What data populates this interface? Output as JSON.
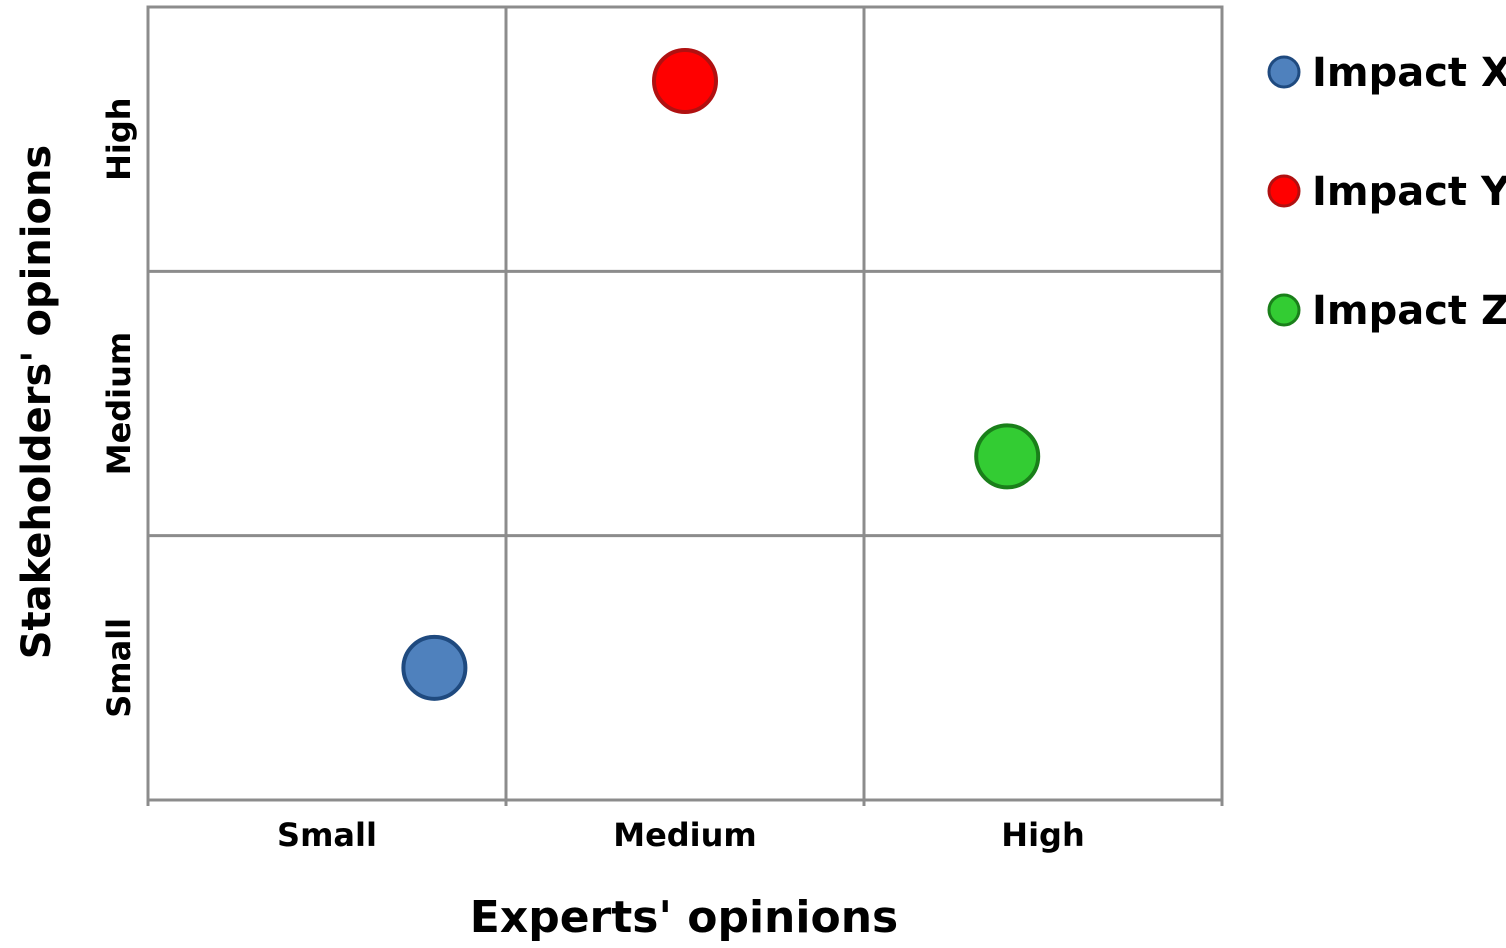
{
  "chart_data": {
    "type": "scatter",
    "xlabel": "Experts' opinions",
    "ylabel": "Stakeholders' opinions",
    "x_categories": [
      "Small",
      "Medium",
      "High"
    ],
    "y_categories": [
      "Small",
      "Medium",
      "High"
    ],
    "xlim": [
      0,
      3
    ],
    "ylim": [
      0,
      3
    ],
    "grid": true,
    "legend_position": "right",
    "series": [
      {
        "name": "Impact X",
        "x": 0.8,
        "y": 0.5,
        "color": "#4F81BD",
        "stroke": "#1F4A7F"
      },
      {
        "name": "Impact Y",
        "x": 1.5,
        "y": 2.72,
        "color": "#FF0000",
        "stroke": "#B01010"
      },
      {
        "name": "Impact Z",
        "x": 2.4,
        "y": 1.3,
        "color": "#33CC33",
        "stroke": "#1A7F1A"
      }
    ]
  }
}
